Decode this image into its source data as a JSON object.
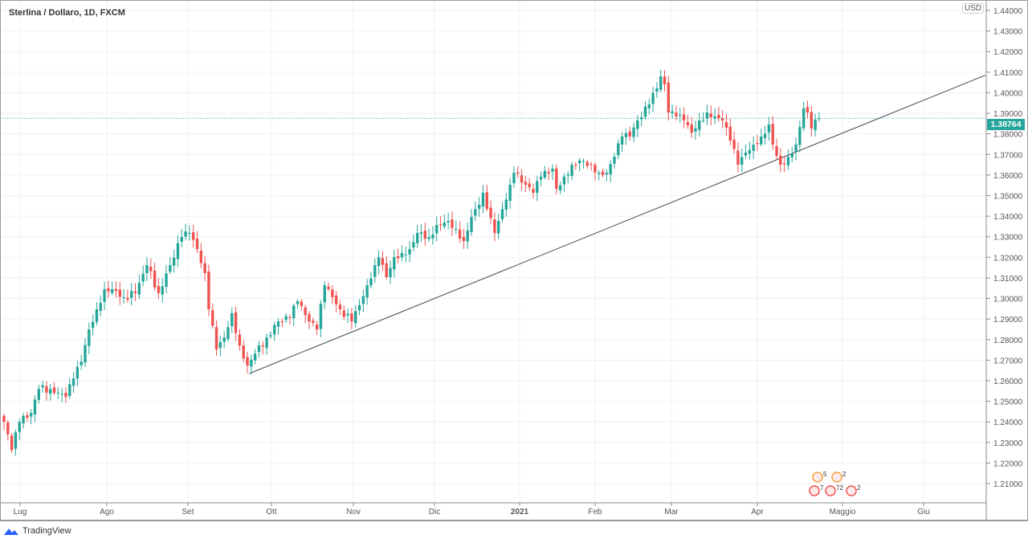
{
  "header": {
    "title": "Sterlina / Dollaro, 1D, FXCM",
    "currency": "USD"
  },
  "footer": {
    "brand": "TradingView"
  },
  "chart_data": {
    "type": "candlestick",
    "title": "Sterlina / Dollaro, 1D, FXCM",
    "ylabel": "USD",
    "ylim": [
      1.2,
      1.44
    ],
    "y_ticks": [
      "1.44000",
      "1.43000",
      "1.42000",
      "1.41000",
      "1.40000",
      "1.39000",
      "1.38000",
      "1.37000",
      "1.36000",
      "1.35000",
      "1.34000",
      "1.33000",
      "1.32000",
      "1.31000",
      "1.30000",
      "1.29000",
      "1.28000",
      "1.27000",
      "1.26000",
      "1.25000",
      "1.24000",
      "1.23000",
      "1.22000",
      "1.21000"
    ],
    "x_ticks": [
      "Lug",
      "Ago",
      "Set",
      "Ott",
      "Nov",
      "Dic",
      "2021",
      "Feb",
      "Mar",
      "Apr",
      "Maggio",
      "Giu"
    ],
    "last_price": "1.38764",
    "up_color": "#26a69a",
    "down_color": "#ef5350",
    "close_keypoints": [
      [
        0,
        1.24
      ],
      [
        2,
        1.2263
      ],
      [
        4,
        1.24
      ],
      [
        7,
        1.2443
      ],
      [
        9,
        1.256
      ],
      [
        12,
        1.256
      ],
      [
        16,
        1.2521
      ],
      [
        18,
        1.2611
      ],
      [
        20,
        1.2693
      ],
      [
        22,
        1.2849
      ],
      [
        24,
        1.2947
      ],
      [
        26,
        1.3045
      ],
      [
        28,
        1.3045
      ],
      [
        31,
        1.3006
      ],
      [
        34,
        1.3026
      ],
      [
        37,
        1.3162
      ],
      [
        40,
        1.3026
      ],
      [
        43,
        1.3162
      ],
      [
        46,
        1.3299
      ],
      [
        48,
        1.3318
      ],
      [
        50,
        1.324
      ],
      [
        52,
        1.3123
      ],
      [
        53,
        1.2947
      ],
      [
        55,
        1.2752
      ],
      [
        57,
        1.281
      ],
      [
        59,
        1.2928
      ],
      [
        61,
        1.2771
      ],
      [
        63,
        1.2674
      ],
      [
        65,
        1.2732
      ],
      [
        68,
        1.281
      ],
      [
        71,
        1.2888
      ],
      [
        74,
        1.2908
      ],
      [
        76,
        1.2986
      ],
      [
        79,
        1.2888
      ],
      [
        81,
        1.2849
      ],
      [
        83,
        1.3064
      ],
      [
        85,
        1.3006
      ],
      [
        87,
        1.2947
      ],
      [
        90,
        1.2888
      ],
      [
        92,
        1.2967
      ],
      [
        94,
        1.3064
      ],
      [
        96,
        1.3162
      ],
      [
        97,
        1.3201
      ],
      [
        99,
        1.3103
      ],
      [
        101,
        1.3201
      ],
      [
        103,
        1.3221
      ],
      [
        105,
        1.324
      ],
      [
        107,
        1.3318
      ],
      [
        110,
        1.3299
      ],
      [
        112,
        1.3357
      ],
      [
        115,
        1.3377
      ],
      [
        117,
        1.3338
      ],
      [
        119,
        1.3279
      ],
      [
        121,
        1.3396
      ],
      [
        123,
        1.3455
      ],
      [
        124,
        1.3514
      ],
      [
        125,
        1.3435
      ],
      [
        127,
        1.3318
      ],
      [
        129,
        1.3435
      ],
      [
        131,
        1.3553
      ],
      [
        132,
        1.3611
      ],
      [
        135,
        1.3553
      ],
      [
        137,
        1.3514
      ],
      [
        139,
        1.3592
      ],
      [
        142,
        1.3631
      ],
      [
        143,
        1.3533
      ],
      [
        145,
        1.3592
      ],
      [
        147,
        1.365
      ],
      [
        149,
        1.367
      ],
      [
        152,
        1.365
      ],
      [
        154,
        1.3611
      ],
      [
        156,
        1.3611
      ],
      [
        158,
        1.3689
      ],
      [
        160,
        1.3787
      ],
      [
        162,
        1.3787
      ],
      [
        164,
        1.3865
      ],
      [
        167,
        1.3943
      ],
      [
        169,
        1.4021
      ],
      [
        170,
        1.408
      ],
      [
        171,
        1.4041
      ],
      [
        172,
        1.3904
      ],
      [
        174,
        1.3885
      ],
      [
        176,
        1.3865
      ],
      [
        178,
        1.3806
      ],
      [
        180,
        1.3865
      ],
      [
        182,
        1.3904
      ],
      [
        184,
        1.3885
      ],
      [
        186,
        1.3865
      ],
      [
        188,
        1.3767
      ],
      [
        190,
        1.365
      ],
      [
        192,
        1.3709
      ],
      [
        194,
        1.3748
      ],
      [
        196,
        1.3787
      ],
      [
        198,
        1.3845
      ],
      [
        199,
        1.3748
      ],
      [
        201,
        1.365
      ],
      [
        203,
        1.3689
      ],
      [
        205,
        1.3748
      ],
      [
        207,
        1.3924
      ],
      [
        208,
        1.3904
      ],
      [
        209,
        1.3826
      ],
      [
        211,
        1.3876
      ]
    ],
    "trendline": {
      "from": [
        63.5,
        1.2635
      ],
      "to": [
        254,
        1.4085
      ]
    },
    "events": [
      {
        "label": "5"
      },
      {
        "label": "2"
      },
      {
        "label": "7"
      },
      {
        "label": "72"
      },
      {
        "label": "2"
      }
    ]
  }
}
